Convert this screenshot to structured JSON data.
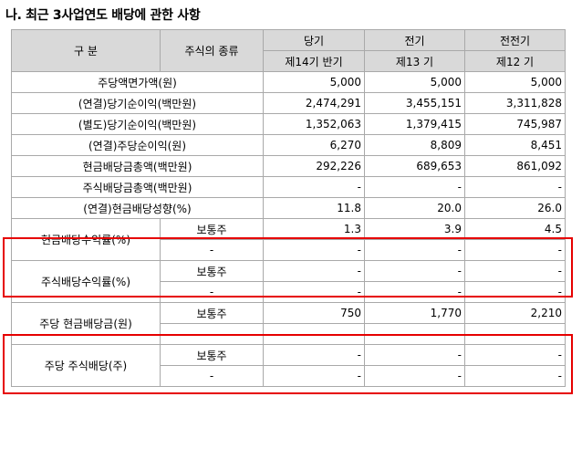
{
  "title": "나. 최근 3사업연도 배당에 관한 사항",
  "header": {
    "col_gubun": "구      분",
    "col_stock_type": "주식의 종류",
    "periods": [
      "당기",
      "전기",
      "전전기"
    ],
    "period_subs": [
      "제14기 반기",
      "제13 기",
      "제12 기"
    ]
  },
  "simple_rows": [
    {
      "label": "주당액면가액(원)",
      "type": "",
      "values": [
        "5,000",
        "5,000",
        "5,000"
      ]
    },
    {
      "label": "(연결)당기순이익(백만원)",
      "type": "",
      "values": [
        "2,474,291",
        "3,455,151",
        "3,311,828"
      ]
    },
    {
      "label": "(별도)당기순이익(백만원)",
      "type": "",
      "values": [
        "1,352,063",
        "1,379,415",
        "745,987"
      ]
    },
    {
      "label": "(연결)주당순이익(원)",
      "type": "",
      "values": [
        "6,270",
        "8,809",
        "8,451"
      ]
    },
    {
      "label": "현금배당금총액(백만원)",
      "type": "",
      "values": [
        "292,226",
        "689,653",
        "861,092"
      ]
    },
    {
      "label": "주식배당금총액(백만원)",
      "type": "",
      "values": [
        "-",
        "-",
        "-"
      ]
    },
    {
      "label": "(연결)현금배당성향(%)",
      "type": "",
      "values": [
        "11.8",
        "20.0",
        "26.0"
      ]
    }
  ],
  "group_rows": [
    {
      "label": "현금배당수익률(%)",
      "sub": [
        {
          "type": "보통주",
          "values": [
            "1.3",
            "3.9",
            "4.5"
          ]
        },
        {
          "type": "-",
          "values": [
            "-",
            "-",
            "-"
          ]
        }
      ]
    },
    {
      "label": "주식배당수익률(%)",
      "sub": [
        {
          "type": "보통주",
          "values": [
            "-",
            "-",
            "-"
          ]
        },
        {
          "type": "-",
          "values": [
            "-",
            "-",
            "-"
          ]
        }
      ]
    },
    {
      "label": "주당 현금배당금(원)",
      "sub": [
        {
          "type": "보통주",
          "values": [
            "750",
            "1,770",
            "2,210"
          ]
        },
        {
          "type": "-",
          "values": [
            "-",
            "-",
            "-"
          ]
        }
      ]
    },
    {
      "label": "주당 주식배당(주)",
      "sub": [
        {
          "type": "보통주",
          "values": [
            "-",
            "-",
            "-"
          ]
        },
        {
          "type": "-",
          "values": [
            "-",
            "-",
            "-"
          ]
        }
      ]
    }
  ],
  "highlight_color": "#e60000"
}
